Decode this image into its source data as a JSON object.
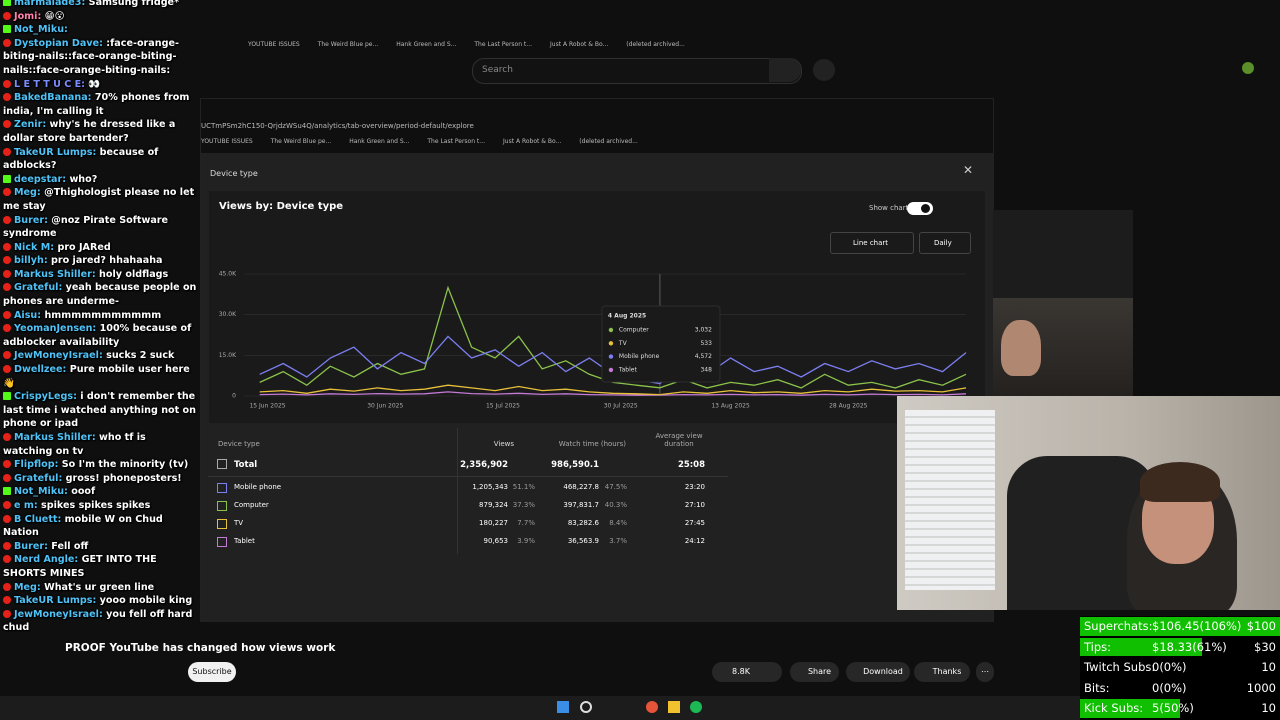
{
  "browser": {
    "search": "Search",
    "url": "UCTmPSm2hC150-QrjdzWSu4Q/analytics/tab-overview/period-default/explore",
    "bookmarks": [
      "YOUTUBE ISSUES",
      "The Weird Blue pe...",
      "Hank Green and S...",
      "The Last Person t...",
      "Just A Robot & Bo...",
      "(deleted archived..."
    ]
  },
  "dialog": {
    "report": "Device type",
    "card_title": "Views by: Device type",
    "show_chart": "Show chart",
    "chart_kind": "Line chart",
    "period": "Daily"
  },
  "chart_data": {
    "type": "line",
    "x": [
      "2025-06-14",
      "2025-06-17",
      "2025-06-20",
      "2025-06-23",
      "2025-06-26",
      "2025-06-29",
      "2025-07-02",
      "2025-07-05",
      "2025-07-08",
      "2025-07-11",
      "2025-07-14",
      "2025-07-17",
      "2025-07-20",
      "2025-07-23",
      "2025-07-26",
      "2025-07-29",
      "2025-08-01",
      "2025-08-04",
      "2025-08-07",
      "2025-08-10",
      "2025-08-13",
      "2025-08-16",
      "2025-08-19",
      "2025-08-22",
      "2025-08-25",
      "2025-08-28",
      "2025-08-31",
      "2025-09-03",
      "2025-09-06",
      "2025-09-09",
      "2025-09-12"
    ],
    "xlim": [
      "2025-06-12",
      "2025-09-12"
    ],
    "xticks": [
      {
        "value": "2025-06-15",
        "label": "15 Jun 2025"
      },
      {
        "value": "2025-06-30",
        "label": "30 Jun 2025"
      },
      {
        "value": "2025-07-15",
        "label": "15 Jul 2025"
      },
      {
        "value": "2025-07-30",
        "label": "30 Jul 2025"
      },
      {
        "value": "2025-08-13",
        "label": "13 Aug 2025"
      },
      {
        "value": "2025-08-28",
        "label": "28 Aug 2025"
      }
    ],
    "ylim": [
      0,
      45000
    ],
    "yticks": [
      0,
      {
        "value": 15000,
        "label": "15.0K"
      },
      {
        "value": 30000,
        "label": "30.0K"
      },
      {
        "value": 45000,
        "label": "45.0K"
      }
    ],
    "grid": true,
    "series": [
      {
        "name": "Mobile phone",
        "color": "#7c7ff2",
        "values": [
          8000,
          12000,
          7000,
          14000,
          18000,
          10000,
          16000,
          12000,
          22000,
          14000,
          17000,
          11000,
          16000,
          9000,
          14000,
          8000,
          6000,
          4572,
          12000,
          8000,
          14000,
          9000,
          11000,
          7000,
          12000,
          9000,
          13000,
          10000,
          12000,
          9000,
          16000
        ]
      },
      {
        "name": "Computer",
        "color": "#8bc34a",
        "values": [
          5000,
          9000,
          4000,
          11000,
          7000,
          12000,
          8000,
          10000,
          40000,
          18000,
          14000,
          22000,
          10000,
          13000,
          8000,
          5000,
          4000,
          3032,
          6000,
          3000,
          5000,
          4000,
          6000,
          3000,
          8000,
          4000,
          5000,
          3000,
          6000,
          4000,
          8000
        ]
      },
      {
        "name": "TV",
        "color": "#e8c13a",
        "values": [
          1500,
          2000,
          1000,
          2500,
          1800,
          3000,
          2000,
          2500,
          4000,
          3000,
          2000,
          3500,
          2000,
          2500,
          1500,
          1000,
          800,
          533,
          1500,
          1000,
          2000,
          1200,
          1500,
          1000,
          2000,
          1500,
          2500,
          1800,
          2000,
          1500,
          3000
        ]
      },
      {
        "name": "Tablet",
        "color": "#c47ad6",
        "values": [
          500,
          700,
          400,
          800,
          600,
          900,
          700,
          800,
          1500,
          900,
          700,
          1000,
          600,
          800,
          500,
          400,
          300,
          348,
          500,
          400,
          600,
          400,
          500,
          300,
          600,
          400,
          700,
          500,
          600,
          400,
          800
        ]
      }
    ],
    "tooltip": {
      "title": "4 Aug 2025",
      "x": "2025-08-04",
      "items": [
        {
          "name": "Computer",
          "label": "3,032"
        },
        {
          "name": "TV",
          "label": "533"
        },
        {
          "name": "Mobile phone",
          "label": "4,572"
        },
        {
          "name": "Tablet",
          "label": "348"
        }
      ]
    }
  },
  "table": {
    "headers": [
      "Device type",
      "Views",
      "Watch time (hours)",
      "Average view duration"
    ],
    "total": [
      "Total",
      "2,356,902",
      "986,590.1",
      "25:08"
    ],
    "rows": [
      [
        "1,205,343",
        "51.1%",
        "468,227.8",
        "47.5%",
        "23:20"
      ],
      [
        "879,324",
        "37.3%",
        "397,831.7",
        "40.3%",
        "27:10"
      ],
      [
        "180,227",
        "7.7%",
        "83,282.6",
        "8.4%",
        "27:45"
      ],
      [
        "90,653",
        "3.9%",
        "36,563.9",
        "3.7%",
        "24:12"
      ]
    ]
  },
  "video": {
    "title": "PROOF YouTube has changed how views work",
    "subscribe": "Subscribe",
    "likes": "8.8K",
    "share": "Share",
    "download": "Download",
    "thanks": "Thanks"
  },
  "goals": [
    {
      "label": "Superchats:",
      "progress": "$106.45(106%)",
      "percent": 106,
      "target": "$100"
    },
    {
      "label": "Tips:",
      "progress": "$18.33(61%)",
      "percent": 61,
      "target": "$30"
    },
    {
      "label": "Twitch Subs:",
      "progress": "0(0%)",
      "percent": 0,
      "target": "10"
    },
    {
      "label": "Bits:",
      "progress": "0(0%)",
      "percent": 0,
      "target": "1000"
    },
    {
      "label": "Kick Subs:",
      "progress": "5(50%)",
      "percent": 50,
      "target": "10"
    }
  ],
  "chat": [
    {
      "platform": "kick",
      "user": "marmalade3:",
      "color": "#4fc3f7",
      "text": "Samsung fridge*"
    },
    {
      "platform": "youtube",
      "user": "Jomi:",
      "color": "#ff80ab",
      "text": "😁😮"
    },
    {
      "platform": "kick",
      "user": "Not_Miku:",
      "color": "#4fc3f7"
    },
    {
      "platform": "youtube",
      "user": "Dystopian Dave:",
      "color": "#4fc3f7",
      "text": ":face-orange-biting-nails::face-orange-biting-nails::face-orange-biting-nails:"
    },
    {
      "platform": "youtube",
      "user": "L E T T U C E:",
      "color": "#7c8cff",
      "text": "👀"
    },
    {
      "platform": "youtube",
      "user": "BakedBanana:",
      "color": "#4fc3f7",
      "text": "70% phones from india, I'm calling it"
    },
    {
      "platform": "youtube",
      "user": "Zenir:",
      "color": "#4fc3f7",
      "text": "why's he dressed like a dollar store bartender?"
    },
    {
      "platform": "youtube",
      "user": "TakeUR Lumps:",
      "color": "#4fc3f7",
      "text": "because of adblocks?"
    },
    {
      "platform": "kick",
      "user": "deepstar:",
      "color": "#4fc3f7",
      "text": "who?"
    },
    {
      "platform": "youtube",
      "user": "Meg:",
      "color": "#4fc3f7",
      "text": "@Thighologist please no let me stay"
    },
    {
      "platform": "youtube",
      "user": "Burer:",
      "color": "#4fc3f7",
      "text": "@noz Pirate Software syndrome"
    },
    {
      "platform": "youtube",
      "user": "Nick M:",
      "color": "#4fc3f7",
      "text": "pro JARed"
    },
    {
      "platform": "youtube",
      "user": "billyh:",
      "color": "#4fc3f7",
      "text": "pro jared? hhahaaha"
    },
    {
      "platform": "youtube",
      "user": "Markus Shiller:",
      "color": "#4fc3f7",
      "text": "holy oldflags"
    },
    {
      "platform": "youtube",
      "user": "Grateful:",
      "color": "#4fc3f7",
      "text": "yeah because people on phones are underme-"
    },
    {
      "platform": "youtube",
      "user": "Aisu:",
      "color": "#4fc3f7",
      "text": "hmmmmmmmmmmm"
    },
    {
      "platform": "youtube",
      "user": "YeomanJensen:",
      "color": "#4fc3f7",
      "text": "100% because of adblocker availability"
    },
    {
      "platform": "youtube",
      "user": "JewMoneyIsrael:",
      "color": "#4fc3f7",
      "text": "sucks 2 suck"
    },
    {
      "platform": "youtube",
      "user": "Dwellzee:",
      "color": "#4fc3f7",
      "text": "Pure mobile user here 👋"
    },
    {
      "platform": "kick",
      "user": "CrispyLegs:",
      "color": "#4fc3f7",
      "text": "i don't remember the last time i watched anything not on phone or ipad"
    },
    {
      "platform": "youtube",
      "user": "Markus Shiller:",
      "color": "#4fc3f7",
      "text": "who tf is watching on tv"
    },
    {
      "platform": "youtube",
      "user": "Flipflop:",
      "color": "#4fc3f7",
      "text": "So I'm the minority (tv)"
    },
    {
      "platform": "youtube",
      "user": "Grateful:",
      "color": "#4fc3f7",
      "text": "gross! phoneposters!"
    },
    {
      "platform": "kick",
      "user": "Not_Miku:",
      "color": "#4fc3f7",
      "text": "ooof"
    },
    {
      "platform": "youtube",
      "user": "e m:",
      "color": "#4fc3f7",
      "text": "spikes spikes spikes"
    },
    {
      "platform": "youtube",
      "user": "B Cluett:",
      "color": "#4fc3f7",
      "text": "mobile W on Chud Nation"
    },
    {
      "platform": "youtube",
      "user": "Burer:",
      "color": "#4fc3f7",
      "text": "Fell off"
    },
    {
      "platform": "youtube",
      "user": "Nerd Angle:",
      "color": "#4fc3f7",
      "text": "GET INTO THE SHORTS MINES"
    },
    {
      "platform": "youtube",
      "user": "Meg:",
      "color": "#4fc3f7",
      "text": "What's ur green line"
    },
    {
      "platform": "youtube",
      "user": "TakeUR Lumps:",
      "color": "#4fc3f7",
      "text": "yooo mobile king"
    },
    {
      "platform": "youtube",
      "user": "JewMoneyIsrael:",
      "color": "#4fc3f7",
      "text": "you fell off hard chud"
    }
  ]
}
